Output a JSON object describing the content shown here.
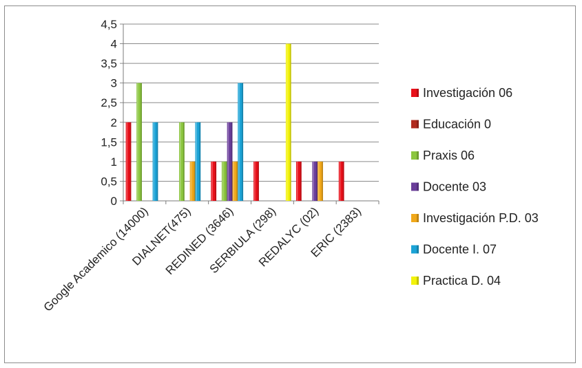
{
  "chart_data": {
    "type": "bar",
    "categories": [
      "Google Academico (14000)",
      "DIALNET(475)",
      "REDINED (3646)",
      "SERBIULA (298)",
      "REDALYC (02)",
      "ERIC (2383)"
    ],
    "series": [
      {
        "name": "Investigación 06",
        "color": "#e8101a",
        "values": [
          2,
          0,
          1,
          1,
          1,
          1
        ]
      },
      {
        "name": "Educación  0",
        "color": "#b02a1e",
        "values": [
          0,
          0,
          0,
          0,
          0,
          0
        ]
      },
      {
        "name": "Praxis  06",
        "color": "#8cc63f",
        "values": [
          3,
          2,
          1,
          0,
          0,
          0
        ]
      },
      {
        "name": "Docente  03",
        "color": "#6a3d9a",
        "values": [
          0,
          0,
          2,
          0,
          1,
          0
        ]
      },
      {
        "name": "Investigación P.D.  03",
        "color": "#f0a81a",
        "values": [
          0,
          1,
          1,
          0,
          1,
          0
        ]
      },
      {
        "name": "Docente I.  07",
        "color": "#1ba3d6",
        "values": [
          2,
          2,
          3,
          0,
          0,
          0
        ]
      },
      {
        "name": "Practica D. 04",
        "color": "#f2f20a",
        "values": [
          0,
          0,
          0,
          4,
          0,
          0
        ]
      }
    ],
    "ylim": [
      0,
      4.5
    ],
    "yticks": [
      "0",
      "0,5",
      "1",
      "1,5",
      "2",
      "2,5",
      "3",
      "3,5",
      "4",
      "4,5"
    ],
    "ytick_values": [
      0,
      0.5,
      1,
      1.5,
      2,
      2.5,
      3,
      3.5,
      4,
      4.5
    ],
    "grid": true,
    "legend": "right"
  }
}
